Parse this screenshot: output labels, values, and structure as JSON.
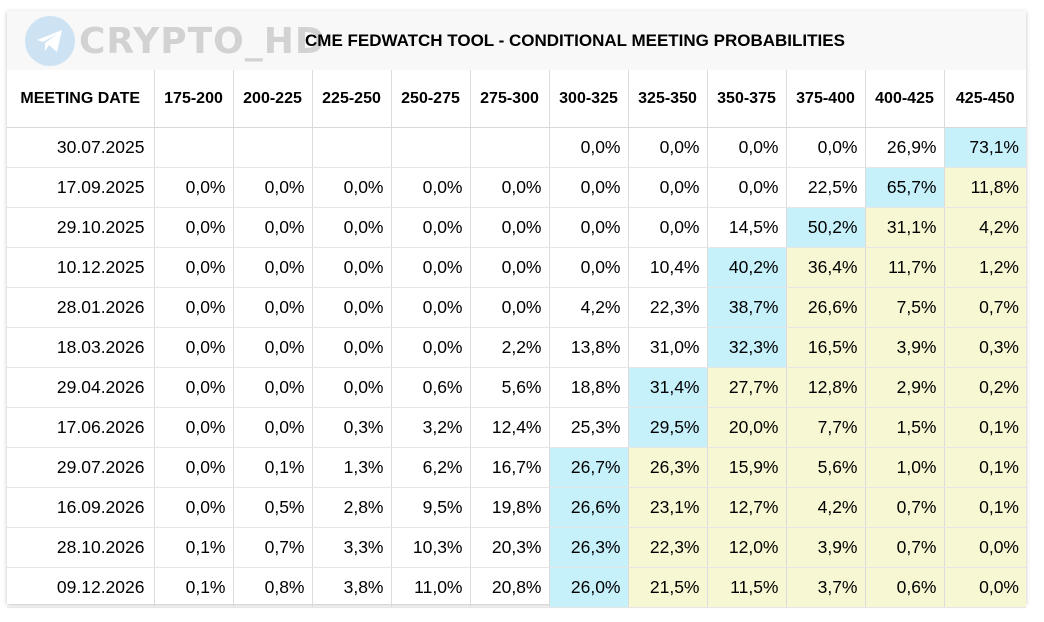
{
  "watermark": {
    "text": "CRYPTO_HD",
    "icon": "telegram-icon"
  },
  "title": "CME FEDWATCH TOOL - CONDITIONAL MEETING PROBABILITIES",
  "colors": {
    "highlight_max": "#c6f0fa",
    "highlight_after": "#f7f8d3"
  },
  "columns": [
    "MEETING DATE",
    "175-200",
    "200-225",
    "225-250",
    "250-275",
    "275-300",
    "300-325",
    "325-350",
    "350-375",
    "375-400",
    "400-425",
    "425-450"
  ],
  "rows": [
    {
      "date": "30.07.2025",
      "values": [
        "",
        "",
        "",
        "",
        "",
        "0,0%",
        "0,0%",
        "0,0%",
        "0,0%",
        "26,9%",
        "73,1%"
      ],
      "max": 10
    },
    {
      "date": "17.09.2025",
      "values": [
        "0,0%",
        "0,0%",
        "0,0%",
        "0,0%",
        "0,0%",
        "0,0%",
        "0,0%",
        "0,0%",
        "22,5%",
        "65,7%",
        "11,8%"
      ],
      "max": 9
    },
    {
      "date": "29.10.2025",
      "values": [
        "0,0%",
        "0,0%",
        "0,0%",
        "0,0%",
        "0,0%",
        "0,0%",
        "0,0%",
        "14,5%",
        "50,2%",
        "31,1%",
        "4,2%"
      ],
      "max": 8
    },
    {
      "date": "10.12.2025",
      "values": [
        "0,0%",
        "0,0%",
        "0,0%",
        "0,0%",
        "0,0%",
        "0,0%",
        "10,4%",
        "40,2%",
        "36,4%",
        "11,7%",
        "1,2%"
      ],
      "max": 7
    },
    {
      "date": "28.01.2026",
      "values": [
        "0,0%",
        "0,0%",
        "0,0%",
        "0,0%",
        "0,0%",
        "4,2%",
        "22,3%",
        "38,7%",
        "26,6%",
        "7,5%",
        "0,7%"
      ],
      "max": 7
    },
    {
      "date": "18.03.2026",
      "values": [
        "0,0%",
        "0,0%",
        "0,0%",
        "0,0%",
        "2,2%",
        "13,8%",
        "31,0%",
        "32,3%",
        "16,5%",
        "3,9%",
        "0,3%"
      ],
      "max": 7
    },
    {
      "date": "29.04.2026",
      "values": [
        "0,0%",
        "0,0%",
        "0,0%",
        "0,6%",
        "5,6%",
        "18,8%",
        "31,4%",
        "27,7%",
        "12,8%",
        "2,9%",
        "0,2%"
      ],
      "max": 6
    },
    {
      "date": "17.06.2026",
      "values": [
        "0,0%",
        "0,0%",
        "0,3%",
        "3,2%",
        "12,4%",
        "25,3%",
        "29,5%",
        "20,0%",
        "7,7%",
        "1,5%",
        "0,1%"
      ],
      "max": 6
    },
    {
      "date": "29.07.2026",
      "values": [
        "0,0%",
        "0,1%",
        "1,3%",
        "6,2%",
        "16,7%",
        "26,7%",
        "26,3%",
        "15,9%",
        "5,6%",
        "1,0%",
        "0,1%"
      ],
      "max": 5
    },
    {
      "date": "16.09.2026",
      "values": [
        "0,0%",
        "0,5%",
        "2,8%",
        "9,5%",
        "19,8%",
        "26,6%",
        "23,1%",
        "12,7%",
        "4,2%",
        "0,7%",
        "0,1%"
      ],
      "max": 5
    },
    {
      "date": "28.10.2026",
      "values": [
        "0,1%",
        "0,7%",
        "3,3%",
        "10,3%",
        "20,3%",
        "26,3%",
        "22,3%",
        "12,0%",
        "3,9%",
        "0,7%",
        "0,0%"
      ],
      "max": 5
    },
    {
      "date": "09.12.2026",
      "values": [
        "0,1%",
        "0,8%",
        "3,8%",
        "11,0%",
        "20,8%",
        "26,0%",
        "21,5%",
        "11,5%",
        "3,7%",
        "0,6%",
        "0,0%"
      ],
      "max": 5
    }
  ]
}
